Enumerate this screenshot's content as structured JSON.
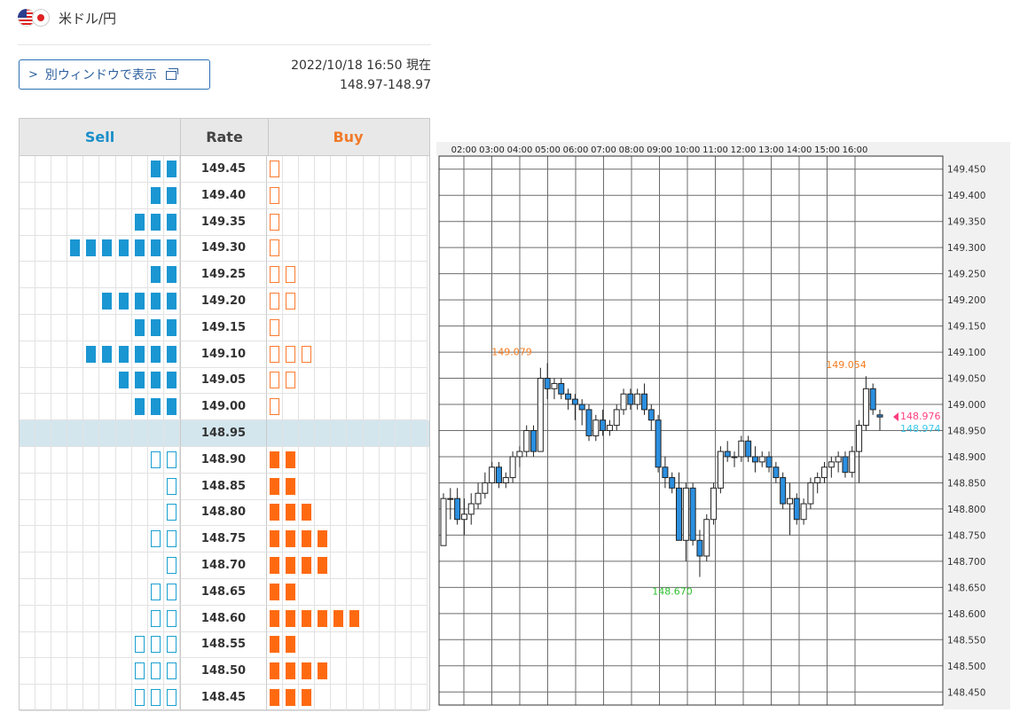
{
  "header": {
    "pair_name": "米ドル/円",
    "flags": [
      "us-flag-icon",
      "jp-flag-icon"
    ],
    "open_window_label": "別ウィンドウで表示",
    "timestamp": "2022/10/18 16:50 現在",
    "quote": "148.97-148.97"
  },
  "orderbook": {
    "headers": {
      "sell": "Sell",
      "rate": "Rate",
      "buy": "Buy"
    },
    "colors": {
      "sell_accent": "#1a96d2",
      "buy_accent": "#ff6a10",
      "current_row_bg": "#d3e6ee"
    },
    "rows": [
      {
        "rate": "149.45",
        "sell": 2,
        "sell_style": "filled",
        "buy": 1,
        "buy_style": "outline"
      },
      {
        "rate": "149.40",
        "sell": 2,
        "sell_style": "filled",
        "buy": 1,
        "buy_style": "outline"
      },
      {
        "rate": "149.35",
        "sell": 3,
        "sell_style": "filled",
        "buy": 1,
        "buy_style": "outline"
      },
      {
        "rate": "149.30",
        "sell": 7,
        "sell_style": "filled",
        "buy": 1,
        "buy_style": "outline"
      },
      {
        "rate": "149.25",
        "sell": 2,
        "sell_style": "filled",
        "buy": 2,
        "buy_style": "outline"
      },
      {
        "rate": "149.20",
        "sell": 5,
        "sell_style": "filled",
        "buy": 2,
        "buy_style": "outline"
      },
      {
        "rate": "149.15",
        "sell": 3,
        "sell_style": "filled",
        "buy": 1,
        "buy_style": "outline"
      },
      {
        "rate": "149.10",
        "sell": 6,
        "sell_style": "filled",
        "buy": 3,
        "buy_style": "outline"
      },
      {
        "rate": "149.05",
        "sell": 4,
        "sell_style": "filled",
        "buy": 2,
        "buy_style": "outline"
      },
      {
        "rate": "149.00",
        "sell": 3,
        "sell_style": "filled",
        "buy": 1,
        "buy_style": "outline"
      },
      {
        "rate": "148.95",
        "sell": 0,
        "sell_style": "filled",
        "buy": 0,
        "buy_style": "filled",
        "current": true
      },
      {
        "rate": "148.90",
        "sell": 2,
        "sell_style": "outline",
        "buy": 2,
        "buy_style": "filled"
      },
      {
        "rate": "148.85",
        "sell": 1,
        "sell_style": "outline",
        "buy": 2,
        "buy_style": "filled"
      },
      {
        "rate": "148.80",
        "sell": 1,
        "sell_style": "outline",
        "buy": 3,
        "buy_style": "filled"
      },
      {
        "rate": "148.75",
        "sell": 2,
        "sell_style": "outline",
        "buy": 4,
        "buy_style": "filled"
      },
      {
        "rate": "148.70",
        "sell": 1,
        "sell_style": "outline",
        "buy": 4,
        "buy_style": "filled"
      },
      {
        "rate": "148.65",
        "sell": 2,
        "sell_style": "outline",
        "buy": 2,
        "buy_style": "filled"
      },
      {
        "rate": "148.60",
        "sell": 2,
        "sell_style": "outline",
        "buy": 6,
        "buy_style": "filled"
      },
      {
        "rate": "148.55",
        "sell": 3,
        "sell_style": "outline",
        "buy": 2,
        "buy_style": "filled"
      },
      {
        "rate": "148.50",
        "sell": 3,
        "sell_style": "outline",
        "buy": 4,
        "buy_style": "filled"
      },
      {
        "rate": "148.45",
        "sell": 3,
        "sell_style": "outline",
        "buy": 3,
        "buy_style": "filled"
      }
    ]
  },
  "chart_data": {
    "type": "candlestick",
    "x_ticks": [
      "02:00",
      "03:00",
      "04:00",
      "05:00",
      "06:00",
      "07:00",
      "08:00",
      "09:00",
      "10:00",
      "11:00",
      "12:00",
      "13:00",
      "14:00",
      "15:00",
      "16:00"
    ],
    "y_ticks": [
      "149.450",
      "149.400",
      "149.350",
      "149.300",
      "149.250",
      "149.200",
      "149.150",
      "149.100",
      "149.050",
      "149.000",
      "148.950",
      "148.900",
      "148.850",
      "148.800",
      "148.750",
      "148.700",
      "148.650",
      "148.600",
      "148.550",
      "148.500",
      "148.450"
    ],
    "ylim": [
      148.425,
      149.475
    ],
    "grid": true,
    "colors": {
      "up": "#ffffff",
      "down": "#2b8fe0",
      "outline": "#222222",
      "high_label": "#f47c20",
      "low_label": "#2fbf2f",
      "bid_label": "#ff3e7f",
      "ask_label": "#3dc8e8"
    },
    "annotations": [
      {
        "text": "149.079",
        "value": 149.079,
        "kind": "high"
      },
      {
        "text": "149.054",
        "value": 149.054,
        "kind": "high"
      },
      {
        "text": "148.670",
        "value": 148.67,
        "kind": "low"
      }
    ],
    "current": {
      "bid_text": "148.976",
      "bid": 148.976,
      "ask_text": "148.974",
      "ask": 148.974
    },
    "candles": [
      [
        148.73,
        148.83,
        148.73,
        148.82
      ],
      [
        148.82,
        148.84,
        148.78,
        148.82
      ],
      [
        148.82,
        148.84,
        148.77,
        148.78
      ],
      [
        148.78,
        148.82,
        148.75,
        148.79
      ],
      [
        148.79,
        148.83,
        148.77,
        148.81
      ],
      [
        148.81,
        148.85,
        148.8,
        148.83
      ],
      [
        148.83,
        148.87,
        148.82,
        148.85
      ],
      [
        148.85,
        148.89,
        148.85,
        148.88
      ],
      [
        148.88,
        148.89,
        148.84,
        148.85
      ],
      [
        148.85,
        148.87,
        148.84,
        148.86
      ],
      [
        148.86,
        148.91,
        148.85,
        148.9
      ],
      [
        148.9,
        148.92,
        148.88,
        148.91
      ],
      [
        148.91,
        148.96,
        148.9,
        148.95
      ],
      [
        148.95,
        148.96,
        148.9,
        148.91
      ],
      [
        148.91,
        149.07,
        148.91,
        149.05
      ],
      [
        149.05,
        149.079,
        149.01,
        149.03
      ],
      [
        149.03,
        149.05,
        149.01,
        149.04
      ],
      [
        149.04,
        149.05,
        149.01,
        149.02
      ],
      [
        149.02,
        149.03,
        148.99,
        149.01
      ],
      [
        149.01,
        149.02,
        148.97,
        149.0
      ],
      [
        149.0,
        149.01,
        148.96,
        148.99
      ],
      [
        148.99,
        149.0,
        148.93,
        148.94
      ],
      [
        148.94,
        148.98,
        148.93,
        148.97
      ],
      [
        148.97,
        148.99,
        148.94,
        148.95
      ],
      [
        148.95,
        148.97,
        148.94,
        148.96
      ],
      [
        148.96,
        149.0,
        148.95,
        148.99
      ],
      [
        148.99,
        149.03,
        148.98,
        149.02
      ],
      [
        149.02,
        149.03,
        148.99,
        149.0
      ],
      [
        149.0,
        149.03,
        148.99,
        149.02
      ],
      [
        149.02,
        149.04,
        148.98,
        148.99
      ],
      [
        148.99,
        149.0,
        148.95,
        148.97
      ],
      [
        148.97,
        148.98,
        148.87,
        148.88
      ],
      [
        148.88,
        148.9,
        148.84,
        148.86
      ],
      [
        148.86,
        148.87,
        148.83,
        148.84
      ],
      [
        148.84,
        148.87,
        148.74,
        148.74
      ],
      [
        148.74,
        148.85,
        148.7,
        148.84
      ],
      [
        148.84,
        148.85,
        148.73,
        148.74
      ],
      [
        148.74,
        148.76,
        148.67,
        148.71
      ],
      [
        148.71,
        148.79,
        148.7,
        148.78
      ],
      [
        148.78,
        148.85,
        148.77,
        148.84
      ],
      [
        148.84,
        148.92,
        148.83,
        148.91
      ],
      [
        148.91,
        148.93,
        148.89,
        148.9
      ],
      [
        148.9,
        148.91,
        148.88,
        148.9
      ],
      [
        148.9,
        148.94,
        148.89,
        148.93
      ],
      [
        148.93,
        148.94,
        148.89,
        148.9
      ],
      [
        148.9,
        148.92,
        148.87,
        148.89
      ],
      [
        148.89,
        148.91,
        148.88,
        148.9
      ],
      [
        148.9,
        148.91,
        148.87,
        148.88
      ],
      [
        148.88,
        148.89,
        148.85,
        148.86
      ],
      [
        148.86,
        148.87,
        148.8,
        148.81
      ],
      [
        148.81,
        148.85,
        148.75,
        148.82
      ],
      [
        148.82,
        148.83,
        148.77,
        148.78
      ],
      [
        148.78,
        148.82,
        148.77,
        148.81
      ],
      [
        148.81,
        148.86,
        148.8,
        148.85
      ],
      [
        148.85,
        148.87,
        148.83,
        148.86
      ],
      [
        148.86,
        148.89,
        148.85,
        148.88
      ],
      [
        148.88,
        148.9,
        148.86,
        148.89
      ],
      [
        148.89,
        148.91,
        148.87,
        148.9
      ],
      [
        148.9,
        148.91,
        148.86,
        148.87
      ],
      [
        148.87,
        148.92,
        148.86,
        148.91
      ],
      [
        148.91,
        148.97,
        148.85,
        148.96
      ],
      [
        148.96,
        149.054,
        148.95,
        149.03
      ],
      [
        149.03,
        149.04,
        148.98,
        148.99
      ],
      [
        148.98,
        148.99,
        148.95,
        148.976
      ]
    ]
  }
}
